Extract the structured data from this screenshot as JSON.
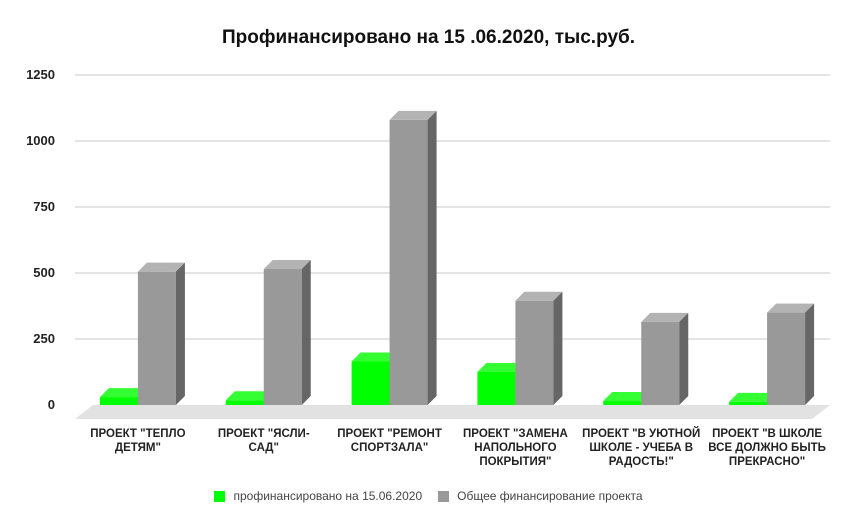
{
  "chart_data": {
    "type": "bar",
    "title": "Профинансировано на 15 .06.2020, тыс.руб.",
    "categories": [
      [
        "ПРОЕКТ \"ТЕПЛО",
        "ДЕТЯМ\""
      ],
      [
        "ПРОЕКТ \"ЯСЛИ-",
        "САД\""
      ],
      [
        "ПРОЕКТ \"РЕМОНТ",
        "СПОРТЗАЛА\""
      ],
      [
        "ПРОЕКТ \"ЗАМЕНА",
        "НАПОЛЬНОГО",
        "ПОКРЫТИЯ\""
      ],
      [
        "ПРОЕКТ \"В УЮТНОЙ",
        "ШКОЛЕ - УЧЕБА В",
        "РАДОСТЬ!\""
      ],
      [
        "ПРОЕКТ \"В ШКОЛЕ",
        "ВСЕ ДОЛЖНО БЫТЬ",
        "ПРЕКРАСНО\""
      ]
    ],
    "series": [
      {
        "name": "профинансировано на 15.06.2020",
        "color": "#00ff00",
        "values": [
          30,
          18,
          165,
          125,
          15,
          12
        ]
      },
      {
        "name": "Общее финансирование проекта",
        "color": "#999999",
        "values": [
          505,
          515,
          1080,
          395,
          315,
          350
        ]
      }
    ],
    "yticks": [
      "0",
      "250",
      "500",
      "750",
      "1000",
      "1250"
    ],
    "ylim": [
      0,
      1250
    ],
    "grid": true,
    "legend_position": "bottom"
  }
}
